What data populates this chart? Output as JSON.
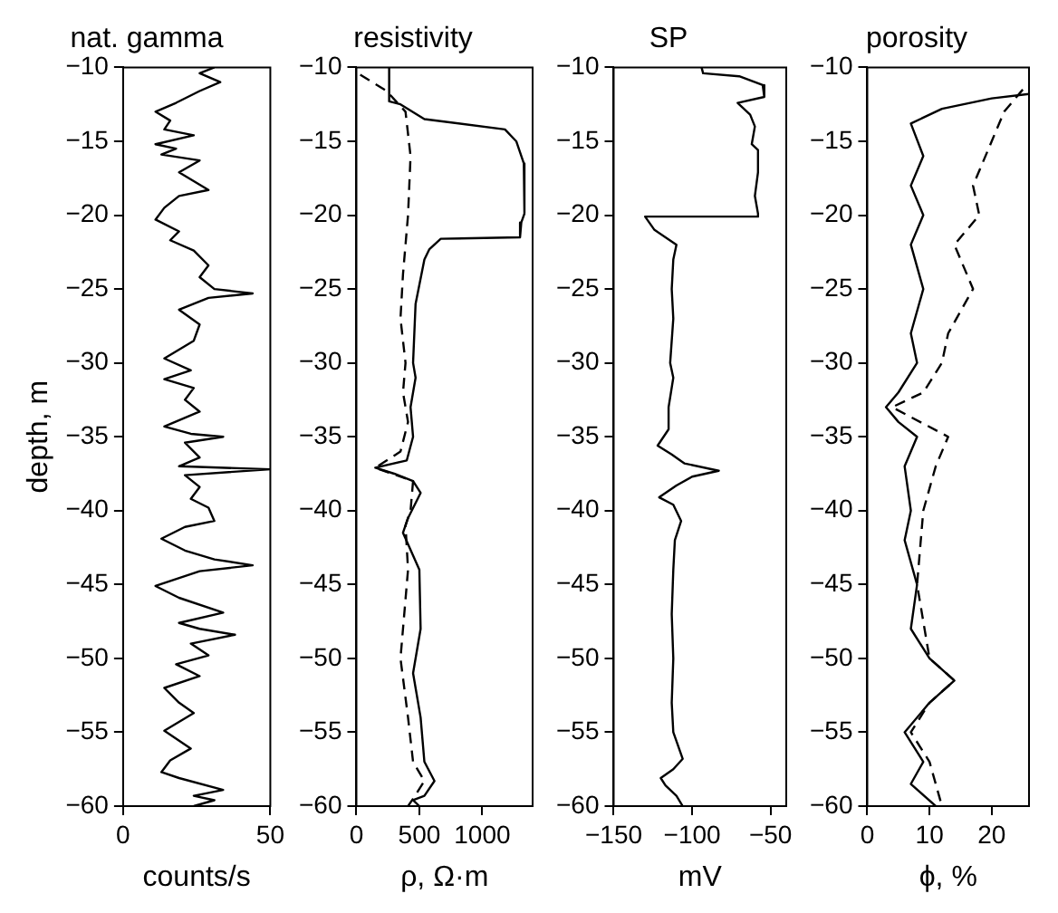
{
  "chart_data": [
    {
      "type": "line",
      "title": "nat. gamma",
      "xlabel": "counts/s",
      "ylabel": "depth, m",
      "xlim": [
        0,
        50
      ],
      "xticks": [
        0,
        50
      ],
      "ylim": [
        -60,
        -10
      ],
      "yticks": [
        -60,
        -55,
        -50,
        -45,
        -40,
        -35,
        -30,
        -25,
        -20,
        -15,
        -10
      ],
      "grid": false,
      "series": [
        {
          "color": "#000000",
          "line_style": "solid",
          "x": [
            31,
            26,
            33,
            26,
            18,
            11,
            16,
            14,
            24,
            11,
            18,
            13,
            26,
            19,
            29,
            19,
            14,
            11,
            19,
            16,
            24,
            29,
            26,
            31,
            44,
            29,
            19,
            26,
            24,
            14,
            23,
            14,
            24,
            21,
            26,
            14,
            23,
            34,
            21,
            26,
            19,
            50,
            21,
            26,
            23,
            29,
            31,
            21,
            13,
            21,
            31,
            44,
            26,
            11,
            19,
            34,
            19,
            26,
            38,
            23,
            29,
            18,
            26,
            14,
            19,
            24,
            14,
            23,
            16,
            13,
            19,
            34,
            24,
            31,
            24
          ],
          "values": [
            -10,
            -10.4,
            -11,
            -11.6,
            -12.4,
            -13,
            -13.6,
            -14.2,
            -14.6,
            -15.2,
            -15.5,
            -15.9,
            -16.3,
            -17.1,
            -18.3,
            -18.7,
            -19.5,
            -20.3,
            -21.1,
            -21.7,
            -22.4,
            -23.4,
            -24.2,
            -25,
            -25.3,
            -25.6,
            -26.4,
            -27.4,
            -28.5,
            -29.7,
            -30.5,
            -31.1,
            -31.7,
            -32.5,
            -33.3,
            -34.3,
            -34.8,
            -35,
            -35.4,
            -36.4,
            -37,
            -37.2,
            -37.6,
            -38.4,
            -39.2,
            -39.8,
            -40.7,
            -41.1,
            -41.9,
            -42.7,
            -43.3,
            -43.7,
            -44.1,
            -45.1,
            -45.9,
            -46.9,
            -47.6,
            -48,
            -48.4,
            -49,
            -49.8,
            -50.4,
            -51.2,
            -52,
            -53,
            -53.7,
            -54.9,
            -56.1,
            -56.9,
            -57.7,
            -58.1,
            -58.9,
            -59.3,
            -59.6,
            -60
          ]
        }
      ]
    },
    {
      "type": "line",
      "title": "resistivity",
      "xlabel": "ρ, Ω·m",
      "xlim": [
        0,
        1400
      ],
      "xticks": [
        0,
        500,
        1000
      ],
      "ylim": [
        -60,
        -10
      ],
      "yticks": [
        -60,
        -55,
        -50,
        -45,
        -40,
        -35,
        -30,
        -25,
        -20,
        -15,
        -10
      ],
      "grid": false,
      "series": [
        {
          "color": "#000000",
          "line_style": "solid",
          "x": [
            260,
            260,
            350,
            540,
            1180,
            1270,
            1330,
            1340,
            1330,
            1310,
            1300,
            1300,
            670,
            580,
            540,
            470,
            450,
            470,
            430,
            450,
            400,
            150,
            300,
            450,
            510,
            410,
            370,
            500,
            510,
            450,
            510,
            540,
            620,
            540,
            450,
            500
          ],
          "values": [
            -10,
            -12.3,
            -12.5,
            -13.5,
            -14.2,
            -15,
            -16.5,
            -18,
            -19.9,
            -20.5,
            -21.3,
            -21.5,
            -21.6,
            -22.3,
            -23,
            -26,
            -30,
            -31,
            -33,
            -35,
            -36.6,
            -37.1,
            -37.5,
            -38,
            -38.8,
            -40.5,
            -41.5,
            -44,
            -48,
            -51,
            -54,
            -57,
            -58.3,
            -59.3,
            -59.6,
            -60
          ]
        },
        {
          "color": "#000000",
          "line_style": "dashed",
          "x": [
            30,
            240,
            390,
            430,
            410,
            370,
            350,
            390,
            370,
            410,
            350,
            150,
            450,
            430,
            390,
            410,
            370,
            350,
            410,
            450,
            540,
            450,
            410
          ],
          "values": [
            -10.5,
            -11.6,
            -13,
            -16,
            -20,
            -24,
            -27,
            -30,
            -32,
            -34,
            -36,
            -37.1,
            -38,
            -40,
            -41,
            -44,
            -48,
            -50,
            -54,
            -57,
            -58.3,
            -59.5,
            -60
          ]
        }
      ]
    },
    {
      "type": "line",
      "title": "SP",
      "xlabel": "mV",
      "xlim": [
        -150,
        -40
      ],
      "xticks": [
        -150,
        -100,
        -50
      ],
      "ylim": [
        -60,
        -10
      ],
      "yticks": [
        -60,
        -55,
        -50,
        -45,
        -40,
        -35,
        -30,
        -25,
        -20,
        -15,
        -10
      ],
      "grid": false,
      "series": [
        {
          "color": "#000000",
          "line_style": "solid",
          "x": [
            -94,
            -93,
            -70,
            -55,
            -54,
            -71,
            -63,
            -60,
            -62,
            -58,
            -58,
            -60,
            -58,
            -58,
            -130,
            -124,
            -110,
            -112,
            -113,
            -112,
            -113,
            -114,
            -112,
            -115,
            -115,
            -122,
            -113,
            -105,
            -83,
            -100,
            -110,
            -121,
            -112,
            -107,
            -111,
            -112,
            -113,
            -112,
            -113,
            -112,
            -106,
            -112,
            -120,
            -117,
            -110,
            -106
          ],
          "values": [
            -10,
            -10.4,
            -10.6,
            -11.2,
            -12,
            -12.4,
            -13.2,
            -14,
            -15.2,
            -15.6,
            -17.1,
            -18.7,
            -19.9,
            -20.1,
            -20.1,
            -21,
            -22,
            -23,
            -25,
            -27,
            -28.5,
            -30,
            -31,
            -33,
            -34.5,
            -35.6,
            -36.2,
            -36.8,
            -37.3,
            -37.7,
            -38.3,
            -39.1,
            -39.6,
            -40.7,
            -42,
            -44,
            -47,
            -50,
            -53,
            -55,
            -56.8,
            -57.5,
            -58.1,
            -58.6,
            -59.3,
            -60
          ]
        }
      ]
    },
    {
      "type": "line",
      "title": "porosity",
      "xlabel": "ϕ, %",
      "xlim": [
        0,
        26
      ],
      "xticks": [
        0,
        10,
        20
      ],
      "ylim": [
        -60,
        -10
      ],
      "yticks": [
        -60,
        -55,
        -50,
        -45,
        -40,
        -35,
        -30,
        -25,
        -20,
        -15,
        -10
      ],
      "grid": false,
      "series": [
        {
          "color": "#000000",
          "line_style": "solid",
          "x": [
            26,
            20,
            12,
            7,
            9,
            7,
            9,
            7,
            9,
            7,
            8,
            5,
            3,
            5,
            8,
            6,
            7,
            6,
            8,
            7,
            10,
            14,
            10,
            6,
            9,
            7,
            11
          ],
          "values": [
            -11.8,
            -12.1,
            -12.8,
            -13.8,
            -16,
            -18,
            -20,
            -22,
            -25,
            -28,
            -30,
            -32,
            -33,
            -34,
            -35,
            -37,
            -40,
            -42,
            -45,
            -48,
            -50,
            -51.5,
            -53,
            -55,
            -57,
            -58.5,
            -60
          ]
        },
        {
          "color": "#000000",
          "line_style": "dashed",
          "x": [
            25,
            22,
            20,
            17,
            18,
            14,
            17,
            13,
            12,
            9,
            4,
            13,
            11,
            9,
            8,
            10,
            14,
            10,
            7,
            10,
            12
          ],
          "values": [
            -11.5,
            -13,
            -15,
            -18,
            -20,
            -22,
            -25,
            -28,
            -30,
            -32,
            -33,
            -35,
            -37,
            -40,
            -45,
            -50,
            -51.5,
            -53,
            -55,
            -57,
            -60
          ]
        }
      ]
    }
  ]
}
